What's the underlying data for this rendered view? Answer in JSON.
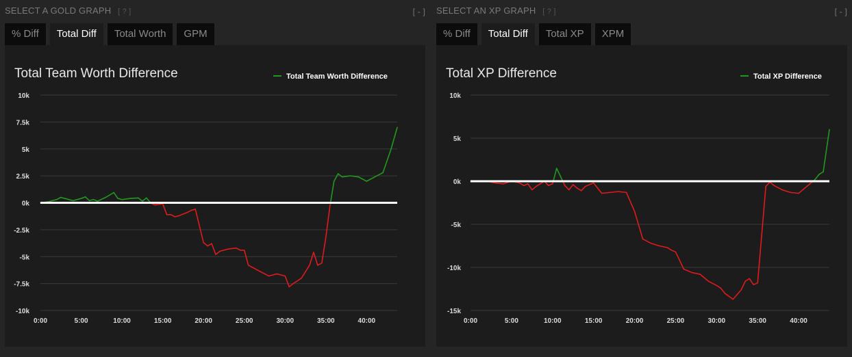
{
  "gold": {
    "header": "SELECT A GOLD GRAPH",
    "help": "[ ? ]",
    "collapse": "[ - ]",
    "tabs": [
      {
        "label": "% Diff",
        "active": false
      },
      {
        "label": "Total Diff",
        "active": true
      },
      {
        "label": "Total Worth",
        "active": false
      },
      {
        "label": "GPM",
        "active": false
      }
    ]
  },
  "xp": {
    "header": "SELECT AN XP GRAPH",
    "help": "[ ? ]",
    "collapse": "[ - ]",
    "tabs": [
      {
        "label": "% Diff",
        "active": false
      },
      {
        "label": "Total Diff",
        "active": true
      },
      {
        "label": "Total XP",
        "active": false
      },
      {
        "label": "XPM",
        "active": false
      }
    ]
  },
  "colors": {
    "positive": "#1f9a1f",
    "negative": "#e01b1b",
    "zero_line": "#ffffff",
    "grid": "#3a3a3a"
  },
  "chart_data": [
    {
      "type": "line",
      "title": "Total Team Worth Difference",
      "legend": "Total Team Worth Difference",
      "legend_position": "top-right",
      "grid": true,
      "xlim": [
        0,
        43.75
      ],
      "ylim": [
        -10000,
        10000
      ],
      "y_ticks": [
        {
          "value": 10000,
          "label": "10k"
        },
        {
          "value": 7500,
          "label": "7.5k"
        },
        {
          "value": 5000,
          "label": "5k"
        },
        {
          "value": 2500,
          "label": "2.5k"
        },
        {
          "value": 0,
          "label": "0k"
        },
        {
          "value": -2500,
          "label": "-2.5k"
        },
        {
          "value": -5000,
          "label": "-5k"
        },
        {
          "value": -7500,
          "label": "-7.5k"
        },
        {
          "value": -10000,
          "label": "-10k"
        }
      ],
      "x_ticks": [
        {
          "value": 0,
          "label": "0:00"
        },
        {
          "value": 5,
          "label": "5:00"
        },
        {
          "value": 10,
          "label": "10:00"
        },
        {
          "value": 15,
          "label": "15:00"
        },
        {
          "value": 20,
          "label": "20:00"
        },
        {
          "value": 25,
          "label": "25:00"
        },
        {
          "value": 30,
          "label": "30:00"
        },
        {
          "value": 35,
          "label": "35:00"
        },
        {
          "value": 40,
          "label": "40:00"
        }
      ],
      "x": [
        0,
        1,
        2,
        2.5,
        3,
        4,
        5,
        5.5,
        6,
        6.5,
        7,
        8,
        9,
        9.5,
        10,
        11,
        12,
        12.5,
        13,
        13.5,
        14,
        15,
        15.5,
        16,
        16.5,
        17,
        18,
        18.5,
        19,
        20,
        20.5,
        21,
        21.5,
        22,
        23,
        24,
        24.5,
        25,
        25.5,
        26,
        27,
        28,
        28.5,
        29,
        30,
        30.5,
        31,
        32,
        33,
        33.5,
        34,
        34.5,
        35,
        35.5,
        36,
        36.5,
        37,
        38,
        39,
        40,
        41,
        42,
        43,
        43.75
      ],
      "values": [
        0,
        100,
        300,
        500,
        400,
        200,
        400,
        550,
        200,
        300,
        150,
        500,
        950,
        400,
        300,
        400,
        450,
        150,
        450,
        0,
        -200,
        -100,
        -1100,
        -1100,
        -1300,
        -1200,
        -900,
        -700,
        -600,
        -3700,
        -4000,
        -3800,
        -4800,
        -4500,
        -4300,
        -4200,
        -4400,
        -4400,
        -5800,
        -6000,
        -6400,
        -6800,
        -6700,
        -6600,
        -6800,
        -7800,
        -7500,
        -7000,
        -5800,
        -4600,
        -5800,
        -5600,
        -3200,
        -300,
        2000,
        2700,
        2400,
        2500,
        2400,
        2000,
        2400,
        2800,
        5000,
        7000
      ]
    },
    {
      "type": "line",
      "title": "Total XP Difference",
      "legend": "Total XP Difference",
      "legend_position": "top-right",
      "grid": true,
      "xlim": [
        0,
        43.75
      ],
      "ylim": [
        -15000,
        10000
      ],
      "y_ticks": [
        {
          "value": 10000,
          "label": "10k"
        },
        {
          "value": 5000,
          "label": "5k"
        },
        {
          "value": 0,
          "label": "0k"
        },
        {
          "value": -5000,
          "label": "-5k"
        },
        {
          "value": -10000,
          "label": "-10k"
        },
        {
          "value": -15000,
          "label": "-15k"
        }
      ],
      "x_ticks": [
        {
          "value": 0,
          "label": "0:00"
        },
        {
          "value": 5,
          "label": "5:00"
        },
        {
          "value": 10,
          "label": "10:00"
        },
        {
          "value": 15,
          "label": "15:00"
        },
        {
          "value": 20,
          "label": "20:00"
        },
        {
          "value": 25,
          "label": "25:00"
        },
        {
          "value": 30,
          "label": "30:00"
        },
        {
          "value": 35,
          "label": "35:00"
        },
        {
          "value": 40,
          "label": "40:00"
        }
      ],
      "x": [
        0,
        2,
        3,
        4,
        5,
        6,
        6.5,
        7,
        7.5,
        8,
        8.5,
        9,
        9.5,
        10,
        10.5,
        11,
        11.5,
        12,
        12.5,
        13,
        13.5,
        14,
        15,
        15.5,
        16,
        17,
        18,
        19,
        20,
        21,
        22,
        23,
        24,
        24.5,
        25,
        26,
        27,
        28,
        28.5,
        29,
        30,
        30.5,
        31,
        32,
        33,
        33.5,
        34,
        34.5,
        35,
        36,
        36.5,
        37,
        38,
        39,
        40,
        41,
        42,
        42.5,
        43,
        43.75
      ],
      "values": [
        0,
        0,
        -200,
        -300,
        0,
        -200,
        -500,
        -300,
        -1000,
        -600,
        -300,
        0,
        -500,
        -300,
        1500,
        500,
        -500,
        -1000,
        -400,
        -800,
        -1100,
        -600,
        -200,
        -800,
        -1400,
        -1300,
        -1200,
        -1300,
        -3500,
        -6700,
        -7200,
        -7500,
        -7700,
        -8000,
        -8200,
        -10200,
        -10600,
        -10800,
        -11200,
        -11600,
        -12100,
        -12400,
        -13000,
        -13700,
        -12600,
        -11600,
        -11300,
        -12000,
        -11800,
        -600,
        -100,
        -500,
        -1000,
        -1300,
        -1400,
        -600,
        200,
        800,
        1100,
        6000
      ]
    }
  ]
}
